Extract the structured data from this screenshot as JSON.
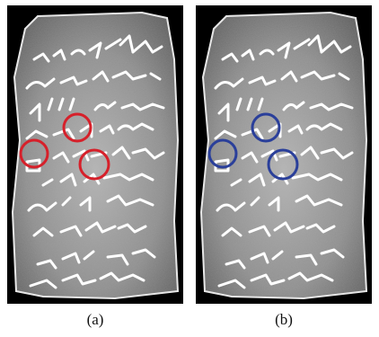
{
  "figure": {
    "panels": [
      {
        "caption": "(a)",
        "circle_color": "#d6202a",
        "circle_count": 3
      },
      {
        "caption": "(b)",
        "circle_color": "#2a3f9a",
        "circle_count": 3
      }
    ],
    "colors": {
      "background": "#000000",
      "stone": "#9a9a9a",
      "ink": "#ffffff"
    }
  }
}
